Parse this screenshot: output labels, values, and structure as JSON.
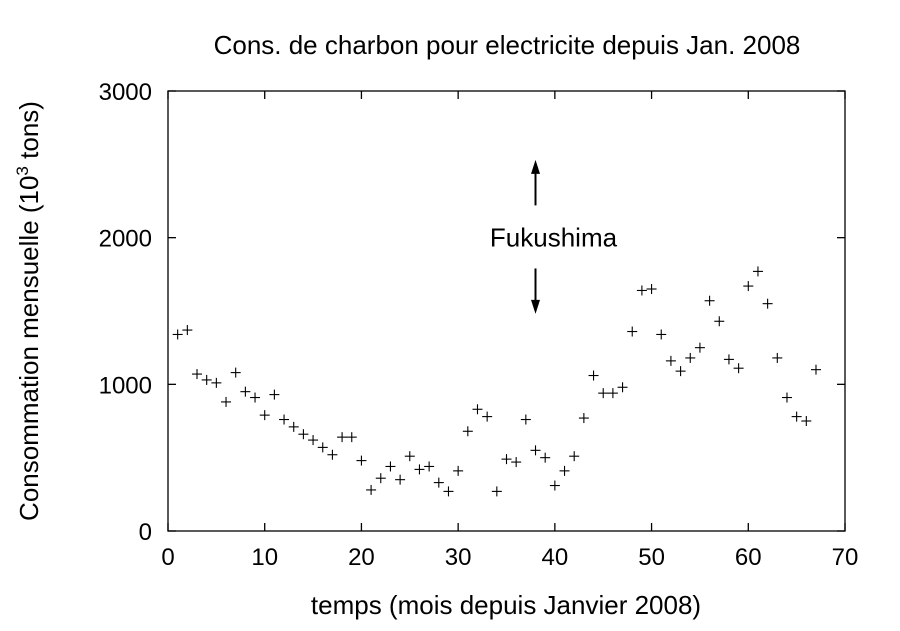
{
  "chart_data": {
    "type": "scatter",
    "title": "Cons. de charbon pour electricite depuis Jan. 2008",
    "xlabel": "temps (mois depuis Janvier 2008)",
    "ylabel": "Consommation mensuelle (10^3 tons)",
    "ylabel_parts": {
      "pre": "Consommation mensuelle (10",
      "sup": "3",
      "post": " tons)"
    },
    "xlim": [
      0,
      70
    ],
    "ylim": [
      0,
      3000
    ],
    "xticks": [
      0,
      10,
      20,
      30,
      40,
      50,
      60,
      70
    ],
    "yticks": [
      0,
      1000,
      2000,
      3000
    ],
    "marker": "+",
    "grid": false,
    "annotation": {
      "text": "Fukushima",
      "x": 38
    },
    "series": [
      {
        "x": [
          1,
          2,
          3,
          4,
          5,
          6,
          7,
          8,
          9,
          10,
          11,
          12,
          13,
          14,
          15,
          16,
          17,
          18,
          19,
          20,
          21,
          22,
          23,
          24,
          25,
          26,
          27,
          28,
          29,
          30,
          31,
          32,
          33,
          34,
          35,
          36,
          37,
          38,
          39,
          40,
          41,
          42,
          43,
          44,
          45,
          46,
          47,
          48,
          49,
          50,
          51,
          52,
          53,
          54,
          55,
          56,
          57,
          58,
          59,
          60,
          61,
          62,
          63,
          64,
          65,
          66,
          67
        ],
        "y": [
          1340,
          1370,
          1070,
          1030,
          1010,
          880,
          1080,
          950,
          910,
          790,
          930,
          760,
          710,
          660,
          620,
          570,
          520,
          640,
          640,
          480,
          280,
          360,
          440,
          350,
          510,
          420,
          440,
          330,
          270,
          410,
          680,
          830,
          780,
          270,
          490,
          470,
          760,
          550,
          500,
          310,
          410,
          510,
          770,
          1060,
          940,
          940,
          980,
          1360,
          1640,
          1650,
          1340,
          1160,
          1090,
          1180,
          1250,
          1570,
          1430,
          1170,
          1110,
          1670,
          1770,
          1550,
          1180,
          910,
          780,
          750,
          1100
        ]
      }
    ]
  }
}
